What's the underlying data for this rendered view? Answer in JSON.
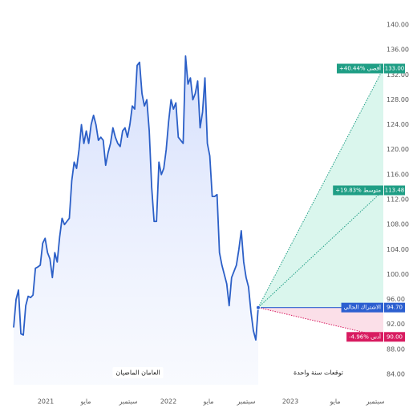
{
  "chart_data": {
    "type": "line",
    "series": [
      {
        "color": "#2b5fc7",
        "values": [
          91.5,
          96,
          97.5,
          90.5,
          90.3,
          95,
          96.5,
          96.3,
          96.7,
          101,
          101.2,
          101.5,
          105,
          105.8,
          103.5,
          102.5,
          99.5,
          103.5,
          102,
          106,
          109,
          108,
          108.5,
          109,
          115,
          118,
          117,
          120,
          124,
          121,
          123,
          121,
          124,
          125.5,
          124,
          121.5,
          122,
          121.5,
          117.5,
          119.5,
          121,
          123.5,
          122,
          121,
          120.5,
          123,
          123.5,
          122,
          124,
          127,
          126.5,
          133.5,
          134,
          129,
          127,
          128,
          123,
          114,
          108.5,
          108.5,
          118,
          116,
          117,
          120,
          124.5,
          128,
          126.5,
          127.5,
          122,
          121.5,
          121,
          135,
          130.5,
          131.5,
          128,
          129,
          131,
          123.5,
          126,
          131.5,
          121,
          119,
          112.5,
          112.5,
          112.8,
          103.5,
          101.5,
          100,
          98.5,
          95,
          99.5,
          100.5,
          101.5,
          104,
          107,
          102,
          99.5,
          98,
          94,
          91,
          89.5,
          94.7
        ]
      }
    ],
    "current": {
      "name": "الاشتراك الحالي",
      "value": 94.7,
      "value_label": "94.70",
      "color": "#2c5fd0"
    },
    "forecasts": [
      {
        "name": "+40.44% أقصى",
        "value": 133,
        "value_label": "133.00",
        "color": "#1f9e85"
      },
      {
        "name": "+19.83% متوسط",
        "value": 113.48,
        "value_label": "113.48",
        "color": "#1f9e85"
      },
      {
        "name": "-4.96% أدنى",
        "value": 90,
        "value_label": "90.00",
        "color": "#d81b60"
      }
    ],
    "annotations": [
      "العامان الماضيان",
      "توقعات سنة واحدة"
    ],
    "xlabels": [
      "2021",
      "مايو",
      "سبتمبر",
      "2022",
      "مايو",
      "سبتمبر",
      "2023",
      "مايو",
      "سبتمبر"
    ],
    "ylim": [
      84,
      140
    ],
    "yticks": [
      {
        "value": 84,
        "label": "84.00"
      },
      {
        "value": 88,
        "label": "88.00"
      },
      {
        "value": 92,
        "label": "92.00"
      },
      {
        "value": 96,
        "label": "96.00"
      },
      {
        "value": 100,
        "label": "100.00"
      },
      {
        "value": 104,
        "label": "104.00"
      },
      {
        "value": 108,
        "label": "108.00"
      },
      {
        "value": 112,
        "label": "112.00"
      },
      {
        "value": 116,
        "label": "116.00"
      },
      {
        "value": 120,
        "label": "120.00"
      },
      {
        "value": 124,
        "label": "124.00"
      },
      {
        "value": 128,
        "label": "128.00"
      },
      {
        "value": 132,
        "label": "132.00"
      },
      {
        "value": 136,
        "label": "136.00"
      },
      {
        "value": 140,
        "label": "140.00"
      }
    ]
  }
}
